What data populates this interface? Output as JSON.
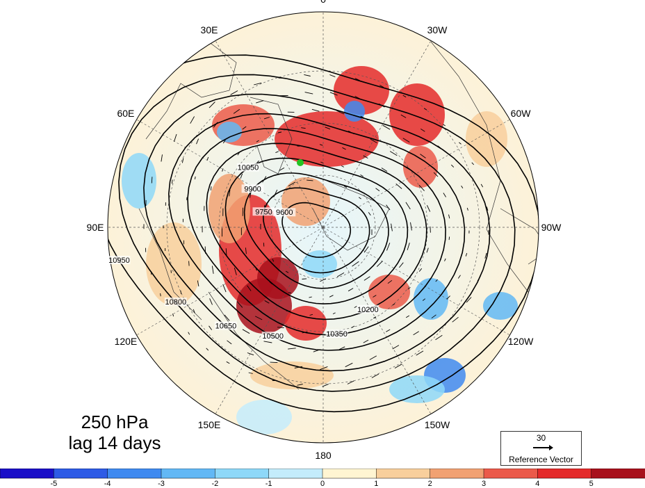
{
  "title": {
    "level": "250 hPa",
    "lag": "lag 14 days"
  },
  "longitude_labels": [
    "0",
    "30W",
    "60W",
    "90W",
    "120W",
    "150W",
    "180",
    "150E",
    "120E",
    "90E",
    "60E",
    "30E"
  ],
  "contour_levels": [
    "9600",
    "9750",
    "9900",
    "10050",
    "10200",
    "10350",
    "10500",
    "10650",
    "10800",
    "10950"
  ],
  "reference_vector": {
    "value": "30",
    "label": "Reference Vector"
  },
  "colorbar": {
    "ticks": [
      "-5",
      "-4",
      "-3",
      "-2",
      "-1",
      "0",
      "1",
      "2",
      "3",
      "4",
      "5"
    ],
    "colors": [
      "#1a0fc8",
      "#2d5be6",
      "#3f8af0",
      "#62b8f5",
      "#8ed8f8",
      "#c4ecfb",
      "#fff5d2",
      "#f8cf9c",
      "#f1a172",
      "#eb5a4a",
      "#e42a2a",
      "#a8111c"
    ]
  },
  "marker_color": "#22c322"
}
